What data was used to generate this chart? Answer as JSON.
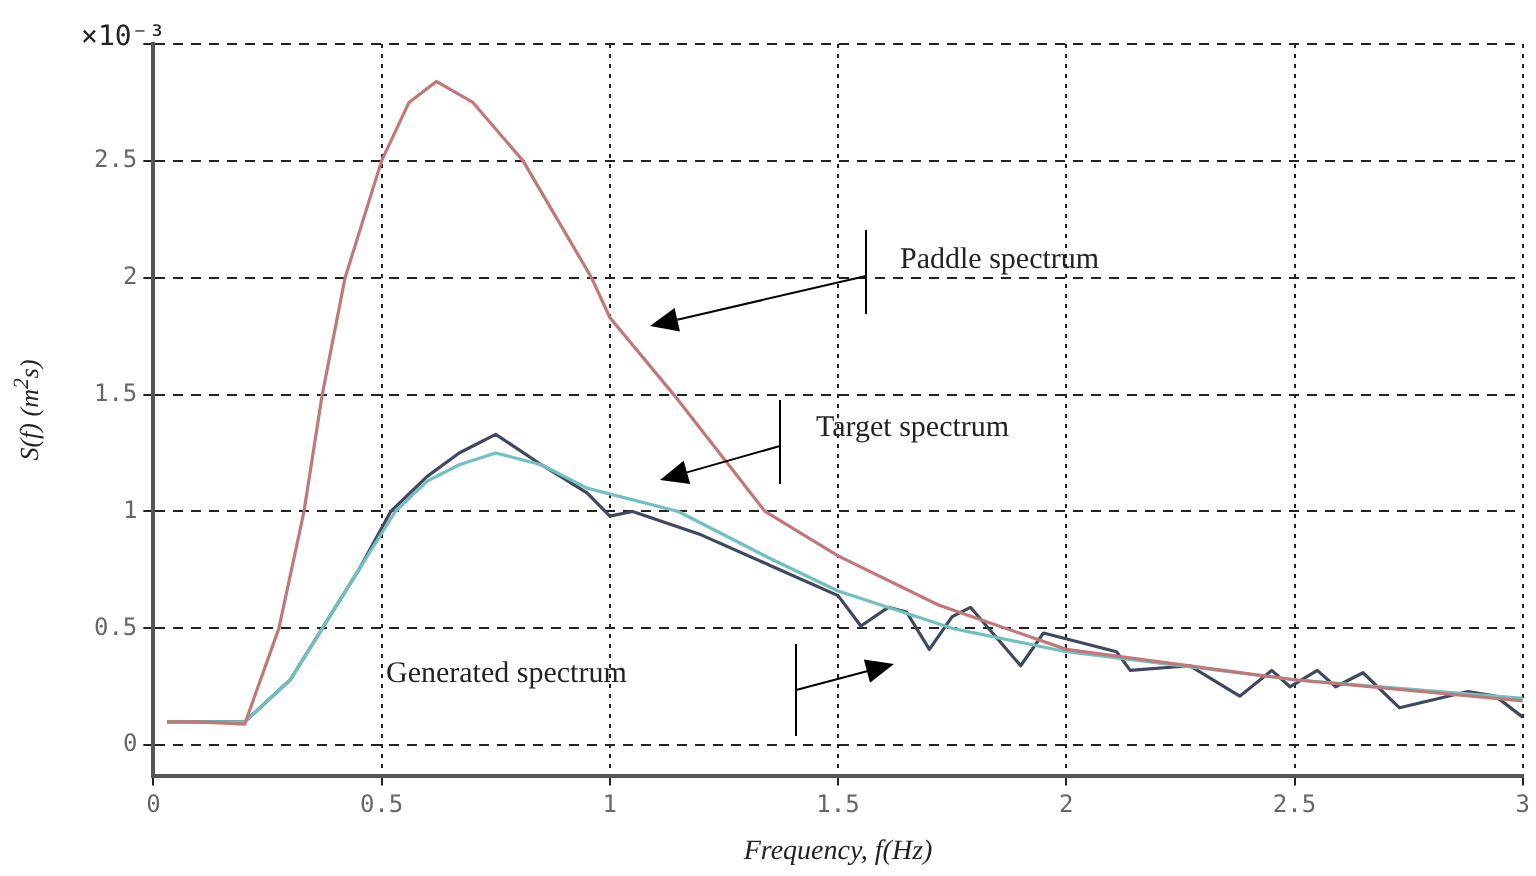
{
  "chart_data": {
    "type": "line",
    "xlabel": "Frequency, f(Hz)",
    "ylabel": "S(f) (m$^{2}$s)",
    "xlim": [
      0,
      3
    ],
    "xticks": [
      0,
      0.5,
      1,
      1.5,
      2,
      2.5,
      3
    ],
    "ylim": [
      -0.13,
      3
    ],
    "yticks": [
      0,
      0.5,
      1,
      1.5,
      2,
      2.5,
      {
        "value": 3,
        "label": null
      }
    ],
    "grid": true,
    "legend": false,
    "marker": "none",
    "series": [
      {
        "color": "#c07878",
        "x": [
          0.03,
          0.1,
          0.2,
          0.275,
          0.33,
          0.37,
          0.42,
          0.5,
          0.56,
          0.62,
          0.7,
          0.81,
          0.96,
          1.0,
          1.14,
          1.34,
          1.5,
          1.72,
          2.0,
          2.5,
          3.0
        ],
        "values": [
          0.1,
          0.1,
          0.09,
          0.5,
          1.0,
          1.5,
          2.0,
          2.5,
          2.75,
          2.84,
          2.75,
          2.5,
          2.0,
          1.83,
          1.5,
          1.0,
          0.81,
          0.6,
          0.41,
          0.28,
          0.19
        ]
      },
      {
        "color": "#70c0c0",
        "x": [
          0.03,
          0.1,
          0.2,
          0.3,
          0.37,
          0.45,
          0.53,
          0.6,
          0.67,
          0.75,
          0.85,
          0.95,
          1.15,
          1.35,
          1.5,
          1.75,
          2.0,
          2.5,
          3.0
        ],
        "values": [
          0.1,
          0.1,
          0.1,
          0.28,
          0.5,
          0.75,
          1.0,
          1.13,
          1.2,
          1.25,
          1.2,
          1.1,
          1.0,
          0.8,
          0.66,
          0.5,
          0.4,
          0.28,
          0.2
        ]
      },
      {
        "color": "#404860",
        "x": [
          0.03,
          0.1,
          0.2,
          0.3,
          0.37,
          0.45,
          0.52,
          0.6,
          0.67,
          0.75,
          0.85,
          0.95,
          1.0,
          1.05,
          1.2,
          1.35,
          1.5,
          1.55,
          1.61,
          1.65,
          1.7,
          1.75,
          1.79,
          1.9,
          1.95,
          2.11,
          2.14,
          2.27,
          2.38,
          2.45,
          2.49,
          2.55,
          2.59,
          2.65,
          2.73,
          2.88,
          2.94,
          3.0
        ],
        "values": [
          0.1,
          0.1,
          0.1,
          0.28,
          0.5,
          0.75,
          1.0,
          1.15,
          1.25,
          1.33,
          1.2,
          1.08,
          0.98,
          1.0,
          0.9,
          0.77,
          0.64,
          0.51,
          0.59,
          0.57,
          0.41,
          0.55,
          0.59,
          0.34,
          0.48,
          0.4,
          0.32,
          0.34,
          0.21,
          0.32,
          0.25,
          0.32,
          0.25,
          0.31,
          0.16,
          0.23,
          0.21,
          0.12
        ]
      }
    ],
    "annotations": [
      "×10⁻³",
      "Paddle spectrum",
      "Target spectrum",
      "Generated spectrum"
    ]
  }
}
